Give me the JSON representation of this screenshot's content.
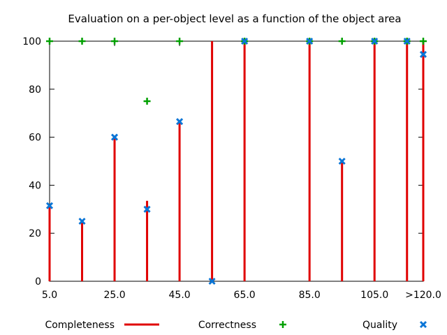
{
  "chart_data": {
    "type": "bar",
    "title": "Evaluation on a per-object level as a function of the object area",
    "xlabel": "",
    "ylabel": "",
    "xlim": [
      5,
      120
    ],
    "ylim": [
      0,
      100
    ],
    "x_ticks": [
      {
        "value": 5,
        "label": "5.0"
      },
      {
        "value": 25,
        "label": "25.0"
      },
      {
        "value": 45,
        "label": "45.0"
      },
      {
        "value": 65,
        "label": "65.0"
      },
      {
        "value": 85,
        "label": "85.0"
      },
      {
        "value": 105,
        "label": "105.0"
      },
      {
        "value": 120,
        "label": ">120.0"
      }
    ],
    "y_ticks": [
      0,
      20,
      40,
      60,
      80,
      100
    ],
    "grid": false,
    "legend_position": "bottom",
    "x": [
      5,
      15,
      25,
      35,
      45,
      55,
      65,
      85,
      95,
      105,
      115,
      120
    ],
    "series": [
      {
        "name": "Completeness",
        "style": "impulses",
        "color": "#e00000",
        "values": [
          31.5,
          25,
          60,
          33.5,
          66.5,
          100,
          100,
          100,
          50,
          100,
          100,
          100
        ]
      },
      {
        "name": "Correctness",
        "style": "points-plus",
        "color": "#00a000",
        "values": [
          100,
          100,
          100,
          75,
          100,
          null,
          100,
          100,
          100,
          100,
          100,
          100
        ]
      },
      {
        "name": "Quality",
        "style": "points-x",
        "color": "#0a75d6",
        "values": [
          31.5,
          25,
          60,
          30,
          66.5,
          0,
          100,
          100,
          50,
          100,
          100,
          94.5
        ]
      }
    ]
  }
}
